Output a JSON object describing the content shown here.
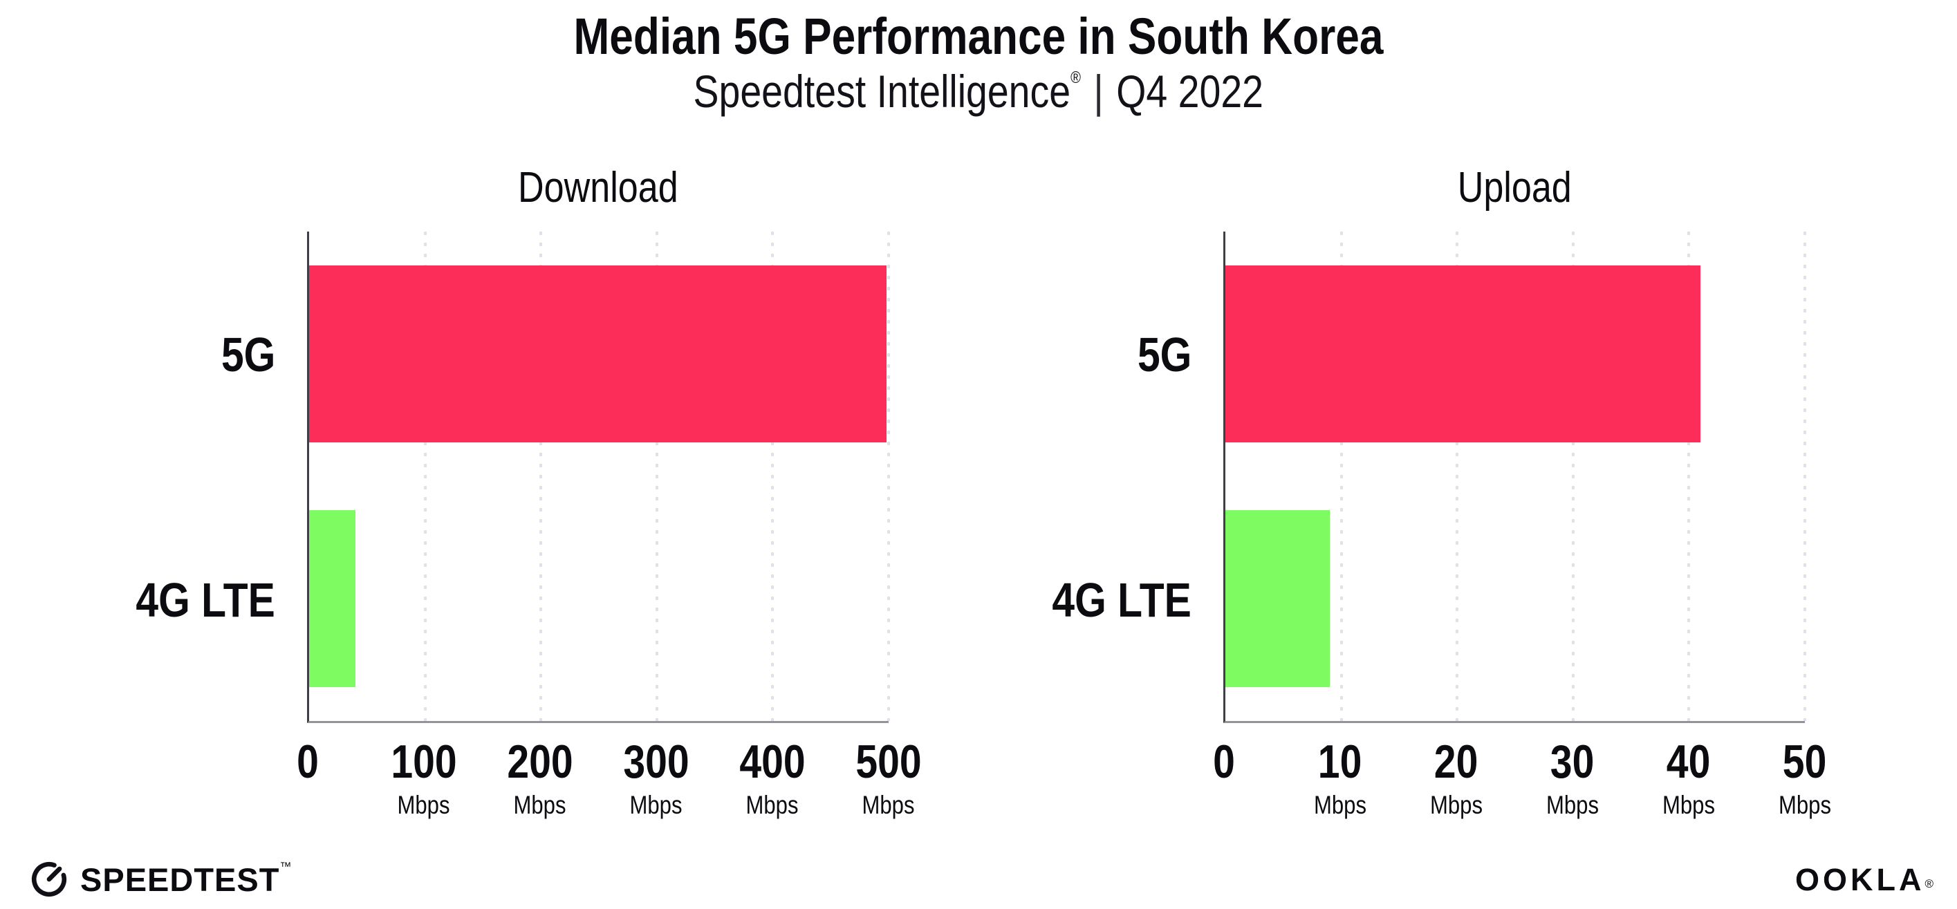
{
  "header": {
    "title": "Median 5G Performance in South Korea",
    "subtitle_brand": "Speedtest Intelligence",
    "subtitle_reg": "®",
    "subtitle_divider": "|",
    "subtitle_period": "Q4 2022"
  },
  "footer": {
    "speedtest_text": "SPEEDTEST",
    "speedtest_mark": "™",
    "ookla_text": "OOKLA",
    "ookla_mark": "®"
  },
  "colors": {
    "bar_5g": "#FC2D58",
    "bar_4g_lte": "#7EFB61",
    "x_axis_line": "#93939B",
    "y_axis_line": "#3F3F48",
    "gridline": "#E1E1ED",
    "text": "#0B0B10",
    "background": "#FFFFFF"
  },
  "chart_data": [
    {
      "type": "bar",
      "orientation": "horizontal",
      "title": "Download",
      "categories": [
        "5G",
        "4G LTE"
      ],
      "values": [
        498,
        40
      ],
      "unit": "Mbps",
      "xlim": [
        0,
        500
      ],
      "xticks": [
        0,
        100,
        200,
        300,
        400,
        500
      ],
      "tick_unit_label": "Mbps",
      "bar_colors": [
        "#FC2D58",
        "#7EFB61"
      ],
      "grid": "vertical-dotted",
      "legend": "none"
    },
    {
      "type": "bar",
      "orientation": "horizontal",
      "title": "Upload",
      "categories": [
        "5G",
        "4G LTE"
      ],
      "values": [
        41,
        9
      ],
      "unit": "Mbps",
      "xlim": [
        0,
        50
      ],
      "xticks": [
        0,
        10,
        20,
        30,
        40,
        50
      ],
      "tick_unit_label": "Mbps",
      "bar_colors": [
        "#FC2D58",
        "#7EFB61"
      ],
      "grid": "vertical-dotted",
      "legend": "none"
    }
  ]
}
